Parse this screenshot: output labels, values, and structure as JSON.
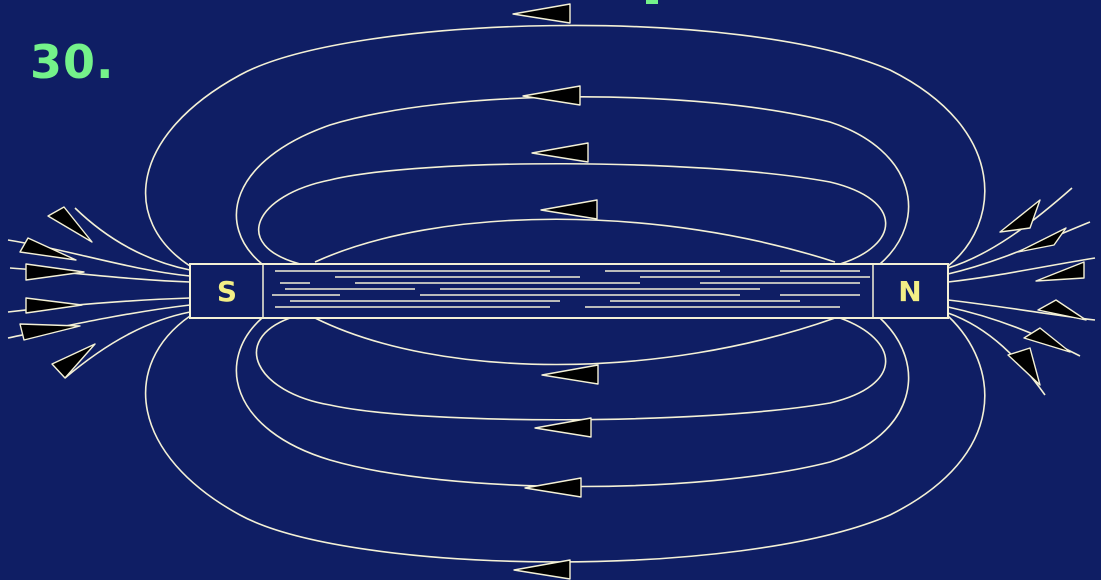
{
  "slide": {
    "number": "30.",
    "accent_color": "#74f28a",
    "background_color": "#0f1e64"
  },
  "magnet": {
    "south_label": "S",
    "north_label": "N",
    "label_color": "#f3ef86",
    "line_color": "#f4f1d6"
  }
}
